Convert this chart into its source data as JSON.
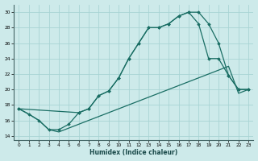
{
  "xlabel": "Humidex (Indice chaleur)",
  "bg_color": "#cdeaea",
  "grid_color": "#a8d4d4",
  "line_color": "#1a6e64",
  "xlim": [
    -0.5,
    23.5
  ],
  "ylim": [
    13.5,
    31.0
  ],
  "yticks": [
    14,
    16,
    18,
    20,
    22,
    24,
    26,
    28,
    30
  ],
  "xticks": [
    0,
    1,
    2,
    3,
    4,
    5,
    6,
    7,
    8,
    9,
    10,
    11,
    12,
    13,
    14,
    15,
    16,
    17,
    18,
    19,
    20,
    21,
    22,
    23
  ],
  "series": [
    {
      "x": [
        0,
        1,
        2,
        3,
        4,
        5,
        6,
        7,
        8,
        9,
        10,
        11,
        12,
        13,
        14,
        15,
        16,
        17,
        18,
        19,
        20,
        21,
        22,
        23
      ],
      "y": [
        17.5,
        16.8,
        16.0,
        14.8,
        14.8,
        15.5,
        17.0,
        17.5,
        19.2,
        19.8,
        21.5,
        24.0,
        26.0,
        28.0,
        28.0,
        28.5,
        29.5,
        30.0,
        30.0,
        28.5,
        26.0,
        21.8,
        20.0,
        20.0
      ],
      "markers": true
    },
    {
      "x": [
        0,
        6,
        7,
        8,
        9,
        10,
        11,
        12,
        13,
        14,
        15,
        16,
        17,
        18,
        19,
        20,
        21,
        22,
        23
      ],
      "y": [
        17.5,
        17.0,
        17.5,
        19.2,
        19.8,
        21.5,
        24.0,
        26.0,
        28.0,
        28.0,
        28.5,
        29.5,
        30.0,
        28.5,
        24.0,
        24.0,
        21.8,
        20.0,
        20.0
      ],
      "markers": true
    },
    {
      "x": [
        0,
        1,
        2,
        3,
        4,
        5,
        6,
        7,
        8,
        9,
        10,
        11,
        12,
        13,
        14,
        15,
        16,
        17,
        18,
        19,
        20,
        21,
        22,
        23
      ],
      "y": [
        17.5,
        16.8,
        16.0,
        14.8,
        14.5,
        15.0,
        15.5,
        16.0,
        16.5,
        17.0,
        17.5,
        18.0,
        18.5,
        19.0,
        19.5,
        20.0,
        20.5,
        21.0,
        21.5,
        22.0,
        22.5,
        23.0,
        19.5,
        20.0
      ],
      "markers": false
    }
  ]
}
